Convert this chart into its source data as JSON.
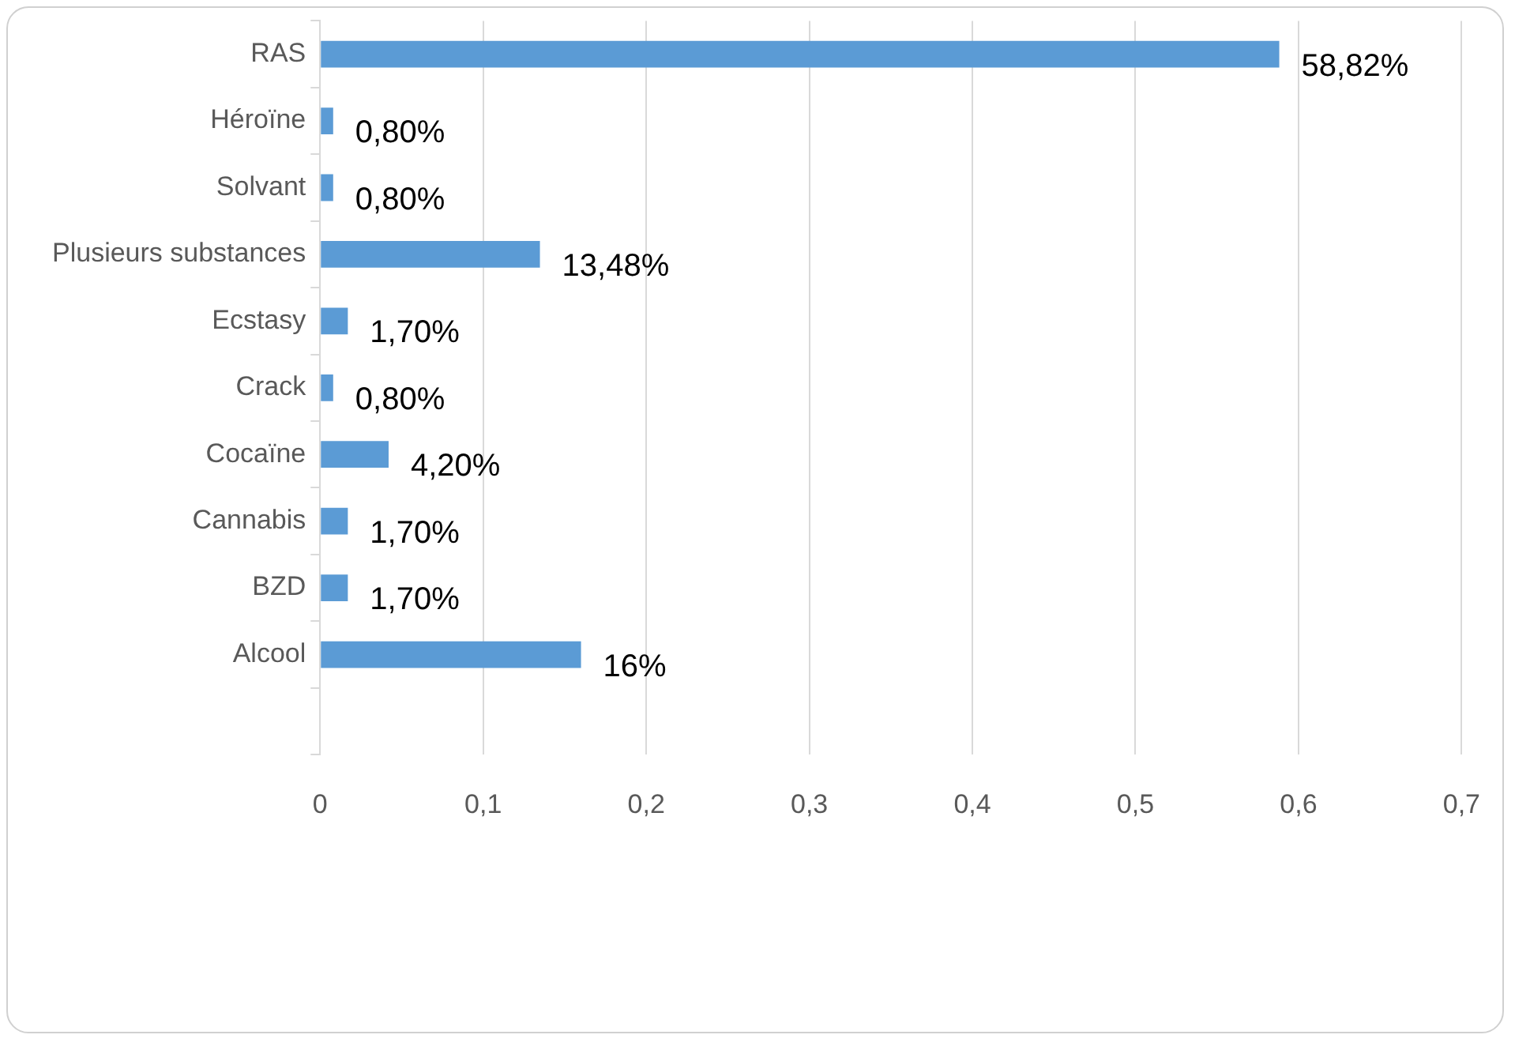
{
  "chart_data": {
    "type": "bar",
    "orientation": "horizontal",
    "categories": [
      "RAS",
      "Héroïne",
      "Solvant",
      "Plusieurs substances",
      "Ecstasy",
      "Crack",
      "Cocaïne",
      "Cannabis",
      "BZD",
      "Alcool",
      null
    ],
    "values": [
      0.5882,
      0.008,
      0.008,
      0.1348,
      0.017,
      0.008,
      0.042,
      0.017,
      0.017,
      0.16,
      null
    ],
    "value_labels": [
      "58,82%",
      "0,80%",
      "0,80%",
      "13,48%",
      "1,70%",
      "0,80%",
      "4,20%",
      "1,70%",
      "1,70%",
      "16%",
      null
    ],
    "color": "#5b9bd5",
    "xlim": [
      0,
      0.7
    ],
    "xticks": [
      0,
      {
        "value": 0.1,
        "label": "0,1"
      },
      {
        "value": 0.2,
        "label": "0,2"
      },
      {
        "value": 0.3,
        "label": "0,3"
      },
      {
        "value": 0.4,
        "label": "0,4"
      },
      {
        "value": 0.5,
        "label": "0,5"
      },
      {
        "value": 0.6,
        "label": "0,6"
      },
      {
        "value": 0.7,
        "label": "0,7"
      }
    ],
    "grid": "x",
    "legend": false
  }
}
